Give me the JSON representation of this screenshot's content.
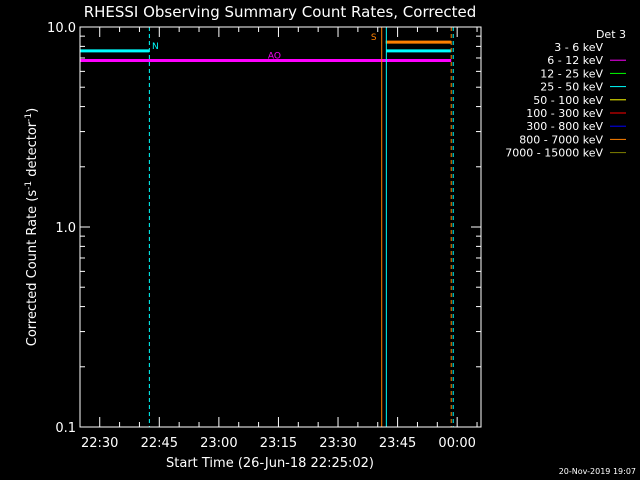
{
  "chart_data": {
    "type": "line",
    "title": "RHESSI Observing Summary Count Rates, Corrected",
    "xlabel": "Start Time (26-Jun-18 22:25:02)",
    "ylabel_parts": [
      "Corrected Count Rate (s",
      "-1",
      " detector",
      "-1",
      ")"
    ],
    "yscale": "log",
    "ylim": [
      0.1,
      10.0
    ],
    "yticks": [
      {
        "value": 10.0,
        "label": "10.0"
      },
      {
        "value": 1.0,
        "label": "1.0"
      },
      {
        "value": 0.1,
        "label": "0.1"
      }
    ],
    "xlim": [
      "22:25:02",
      "00:06:00"
    ],
    "xticks": [
      "22:30",
      "22:45",
      "23:00",
      "23:15",
      "23:30",
      "23:45",
      "00:00"
    ],
    "footer": "20-Nov-2019 19:07",
    "legend": {
      "title": "Det 3",
      "position": "top-right",
      "items": [
        {
          "label": "3 - 6 keV",
          "color": "#000000"
        },
        {
          "label": "6 - 12 keV",
          "color": "#ff00ff"
        },
        {
          "label": "12 - 25 keV",
          "color": "#00ff00"
        },
        {
          "label": "25 - 50 keV",
          "color": "#00ffff"
        },
        {
          "label": "50 - 100 keV",
          "color": "#ffff00"
        },
        {
          "label": "100 - 300 keV",
          "color": "#ff0000"
        },
        {
          "label": "300 - 800 keV",
          "color": "#0000ff"
        },
        {
          "label": "800 - 7000 keV",
          "color": "#ff8000"
        },
        {
          "label": "7000 - 15000 keV",
          "color": "#808000"
        }
      ]
    },
    "series": [
      {
        "name": "6 - 12 keV",
        "color": "#ff00ff",
        "x": [
          "22:25:02",
          "23:58:30"
        ],
        "y": [
          6.8,
          6.8
        ]
      },
      {
        "name": "25 - 50 keV",
        "color": "#00ffff",
        "x": [
          "22:25:02",
          "22:42:30"
        ],
        "y": [
          7.6,
          7.6
        ]
      },
      {
        "name": "25 - 50 keV",
        "color": "#00ffff",
        "x": [
          "23:42:10",
          "23:58:30"
        ],
        "y": [
          7.6,
          7.6
        ]
      },
      {
        "name": "800 - 7000 keV",
        "color": "#ff8000",
        "x": [
          "23:42:00",
          "23:58:30"
        ],
        "y": [
          8.4,
          8.4
        ]
      }
    ],
    "annotations": [
      {
        "text": "N",
        "color": "#00ffff",
        "x": "22:44:00",
        "y": 7.6
      },
      {
        "text": "AO",
        "color": "#ff00ff",
        "x": "23:14:00",
        "y": 6.8
      },
      {
        "text": "S",
        "color": "#ff8000",
        "x": "23:39:00",
        "y": 8.4
      }
    ],
    "vlines": [
      {
        "x": "22:25:02",
        "color": "#00ffff",
        "style": "solid"
      },
      {
        "x": "22:42:30",
        "color": "#00ffff",
        "style": "dashed"
      },
      {
        "x": "23:41:00",
        "color": "#ff8000",
        "style": "solid"
      },
      {
        "x": "23:42:10",
        "color": "#00ffff",
        "style": "solid"
      },
      {
        "x": "23:58:30",
        "color": "#ff8000",
        "style": "dashed"
      },
      {
        "x": "23:59:00",
        "color": "#00ffff",
        "style": "dashed"
      }
    ]
  }
}
